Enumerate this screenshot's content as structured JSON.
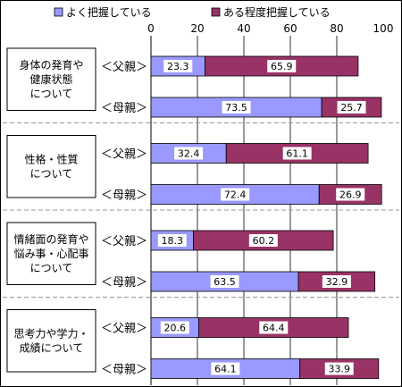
{
  "chart_data": {
    "type": "bar",
    "orientation": "horizontal",
    "stacked": true,
    "xlim": [
      0,
      100
    ],
    "x_ticks": [
      "0",
      "20",
      "40",
      "60",
      "80",
      "100"
    ],
    "legend": {
      "position": "top",
      "items": [
        {
          "name": "よく把握している",
          "color": "#9999ff"
        },
        {
          "name": "ある程度把握している",
          "color": "#993366"
        }
      ]
    },
    "groups": [
      {
        "label": "身体の発育や健康状態について",
        "label_lines": [
          "身体の発育や",
          "健康状態",
          "について"
        ],
        "bars": [
          {
            "label": "＜父親＞",
            "values": [
              23.3,
              65.9
            ],
            "value_labels": [
              "23.3",
              "65.9"
            ]
          },
          {
            "label": "＜母親＞",
            "values": [
              73.5,
              25.7
            ],
            "value_labels": [
              "73.5",
              "25.7"
            ]
          }
        ]
      },
      {
        "label": "性格・性質について",
        "label_lines": [
          "性格・性質",
          "について"
        ],
        "bars": [
          {
            "label": "＜父親＞",
            "values": [
              32.4,
              61.1
            ],
            "value_labels": [
              "32.4",
              "61.1"
            ]
          },
          {
            "label": "＜母親＞",
            "values": [
              72.4,
              26.9
            ],
            "value_labels": [
              "72.4",
              "26.9"
            ]
          }
        ]
      },
      {
        "label": "情緒面の発育や悩み事・心配事について",
        "label_lines": [
          "情緒面の発育や",
          "悩み事・心配事",
          "について"
        ],
        "bars": [
          {
            "label": "＜父親＞",
            "values": [
              18.3,
              60.2
            ],
            "value_labels": [
              "18.3",
              "60.2"
            ]
          },
          {
            "label": "＜母親＞",
            "values": [
              63.5,
              32.9
            ],
            "value_labels": [
              "63.5",
              "32.9"
            ]
          }
        ]
      },
      {
        "label": "思考力や学力・成績について",
        "label_lines": [
          "思考力や学力・",
          "成績について"
        ],
        "bars": [
          {
            "label": "＜父親＞",
            "values": [
              20.6,
              64.4
            ],
            "value_labels": [
              "20.6",
              "64.4"
            ]
          },
          {
            "label": "＜母親＞",
            "values": [
              64.1,
              33.9
            ],
            "value_labels": [
              "64.1",
              "33.9"
            ]
          }
        ]
      }
    ]
  }
}
